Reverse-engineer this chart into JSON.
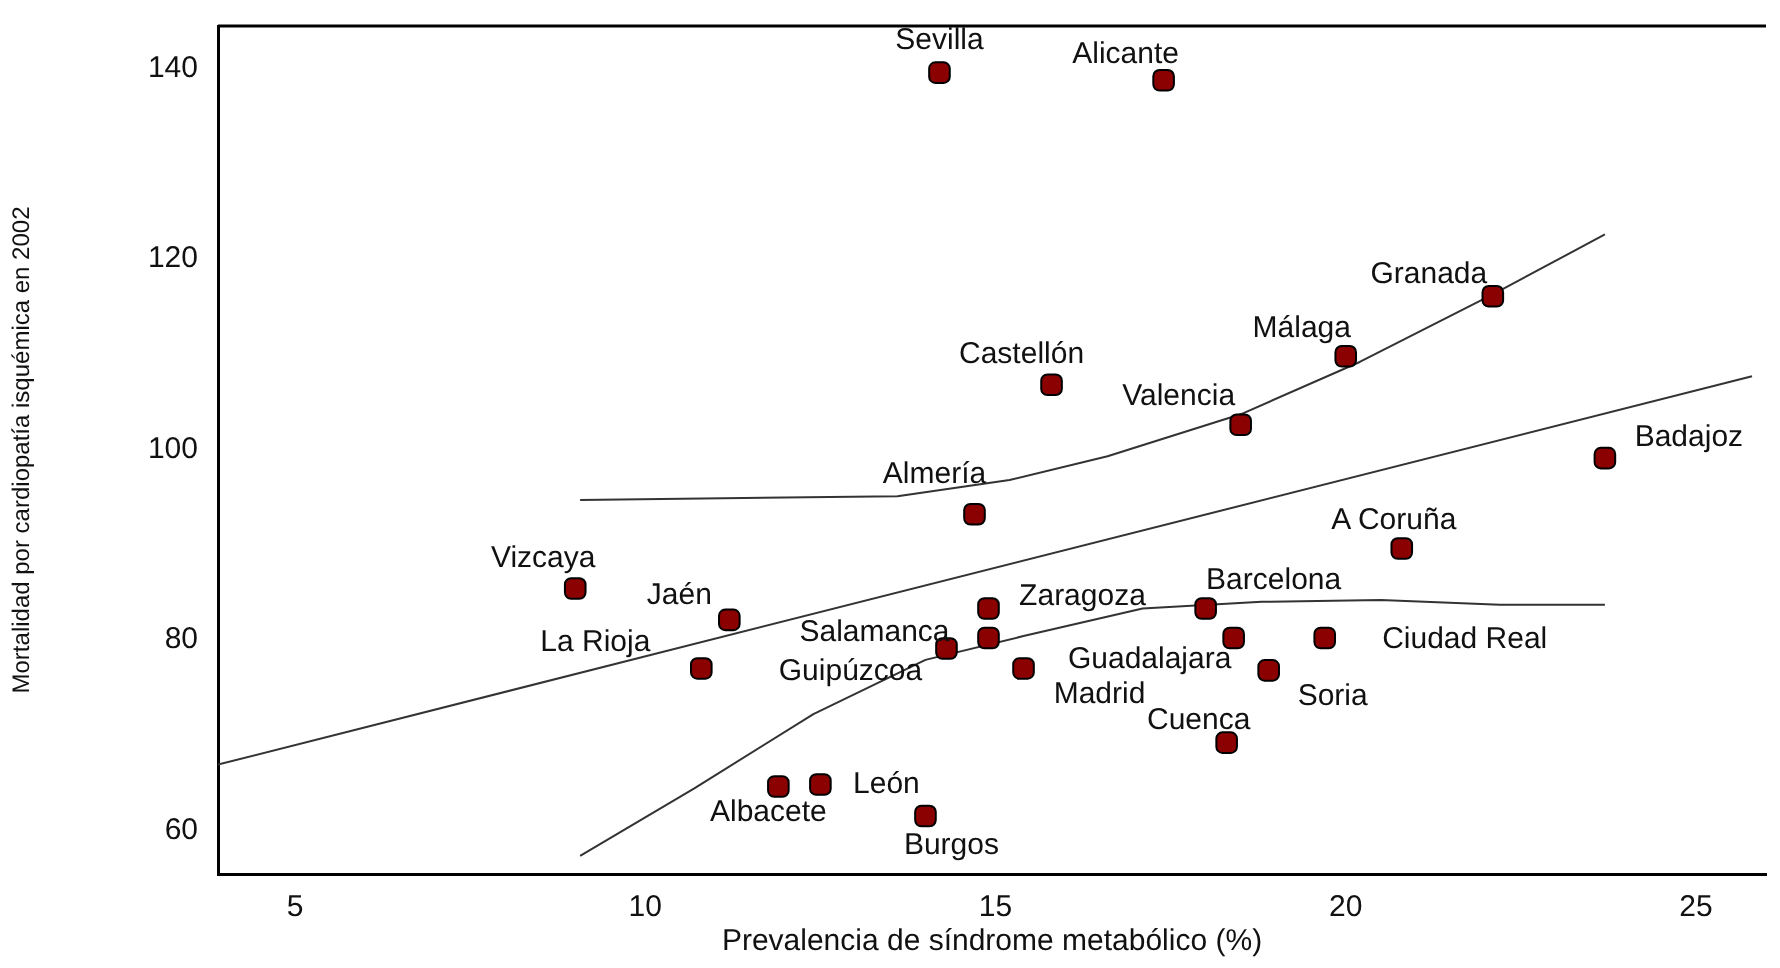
{
  "chart_data": {
    "type": "scatter",
    "xlabel": "Prevalencia de síndrome metabólico (%)",
    "ylabel": "Mortalidad por cardiopatía isquémica en 2002",
    "xlim": [
      3.9,
      26
    ],
    "ylim": [
      55.4,
      144.5
    ],
    "xticks": [
      5,
      10,
      15,
      20,
      25
    ],
    "yticks": [
      60,
      80,
      100,
      120,
      140
    ],
    "grid": false,
    "legend": false,
    "series": [
      {
        "marker": "square",
        "color": "#8b0000",
        "x": [
          14.2,
          17.4,
          22.1,
          20.0,
          15.8,
          18.5,
          23.7,
          14.7,
          20.8,
          9.0,
          11.2,
          10.8,
          14.3,
          14.9,
          14.9,
          18.0,
          15.4,
          18.4,
          19.7,
          18.9,
          18.3,
          12.5,
          11.9,
          14.0
        ],
        "values": [
          139.6,
          138.8,
          116.1,
          109.8,
          106.8,
          102.6,
          99.1,
          93.2,
          89.6,
          85.4,
          82.1,
          77.0,
          79.1,
          80.2,
          83.3,
          83.3,
          77.0,
          80.2,
          80.2,
          76.8,
          69.2,
          64.8,
          64.6,
          61.5
        ]
      },
      {
        "type": "line",
        "marker": "none",
        "color": "#333333",
        "x": [
          3.9,
          25.8
        ],
        "values": [
          66.9,
          107.7
        ]
      },
      {
        "type": "line",
        "marker": "none",
        "color": "#333333",
        "x": [
          9.07,
          13.6,
          15.2,
          16.6,
          18.5,
          20.2,
          22.1,
          23.7
        ],
        "values": [
          94.7,
          95.1,
          96.8,
          99.3,
          103.7,
          109.2,
          116.3,
          122.6
        ]
      },
      {
        "type": "line",
        "marker": "none",
        "color": "#333333",
        "x": [
          9.07,
          10.7,
          12.4,
          14.0,
          15.4,
          17.1,
          18.8,
          20.5,
          22.2,
          23.7
        ],
        "values": [
          57.3,
          64.4,
          72.2,
          77.9,
          80.4,
          83.3,
          84.0,
          84.2,
          83.7,
          83.7
        ]
      }
    ],
    "annotations": [
      {
        "text": "Sevilla",
        "x": 14.2,
        "y": 139.6
      },
      {
        "text": "Alicante",
        "x": 17.4,
        "y": 138.8
      },
      {
        "text": "Granada",
        "x": 22.1,
        "y": 116.1
      },
      {
        "text": "Málaga",
        "x": 20.0,
        "y": 109.8
      },
      {
        "text": "Castellón",
        "x": 15.8,
        "y": 106.8
      },
      {
        "text": "Valencia",
        "x": 18.5,
        "y": 102.6
      },
      {
        "text": "Badajoz",
        "x": 23.7,
        "y": 99.1
      },
      {
        "text": "Almería",
        "x": 14.7,
        "y": 93.2
      },
      {
        "text": "A Coruña",
        "x": 20.8,
        "y": 89.6
      },
      {
        "text": "Vizcaya",
        "x": 9.0,
        "y": 85.4
      },
      {
        "text": "Jaén",
        "x": 11.2,
        "y": 82.1
      },
      {
        "text": "La Rioja",
        "x": 10.8,
        "y": 77.0
      },
      {
        "text": "Salamanca",
        "x": 14.3,
        "y": 79.1
      },
      {
        "text": "Guipúzcoa",
        "x": 14.9,
        "y": 80.2
      },
      {
        "text": "Zaragoza",
        "x": 14.9,
        "y": 83.3
      },
      {
        "text": "Barcelona",
        "x": 18.0,
        "y": 83.3
      },
      {
        "text": "Madrid",
        "x": 15.4,
        "y": 77.0
      },
      {
        "text": "Guadalajara",
        "x": 18.4,
        "y": 80.2
      },
      {
        "text": "Ciudad Real",
        "x": 19.7,
        "y": 80.2
      },
      {
        "text": "Soria",
        "x": 18.9,
        "y": 76.8
      },
      {
        "text": "Cuenca",
        "x": 18.3,
        "y": 69.2
      },
      {
        "text": "León",
        "x": 12.5,
        "y": 64.8
      },
      {
        "text": "Albacete",
        "x": 11.9,
        "y": 64.6
      },
      {
        "text": "Burgos",
        "x": 14.0,
        "y": 61.5
      }
    ]
  }
}
